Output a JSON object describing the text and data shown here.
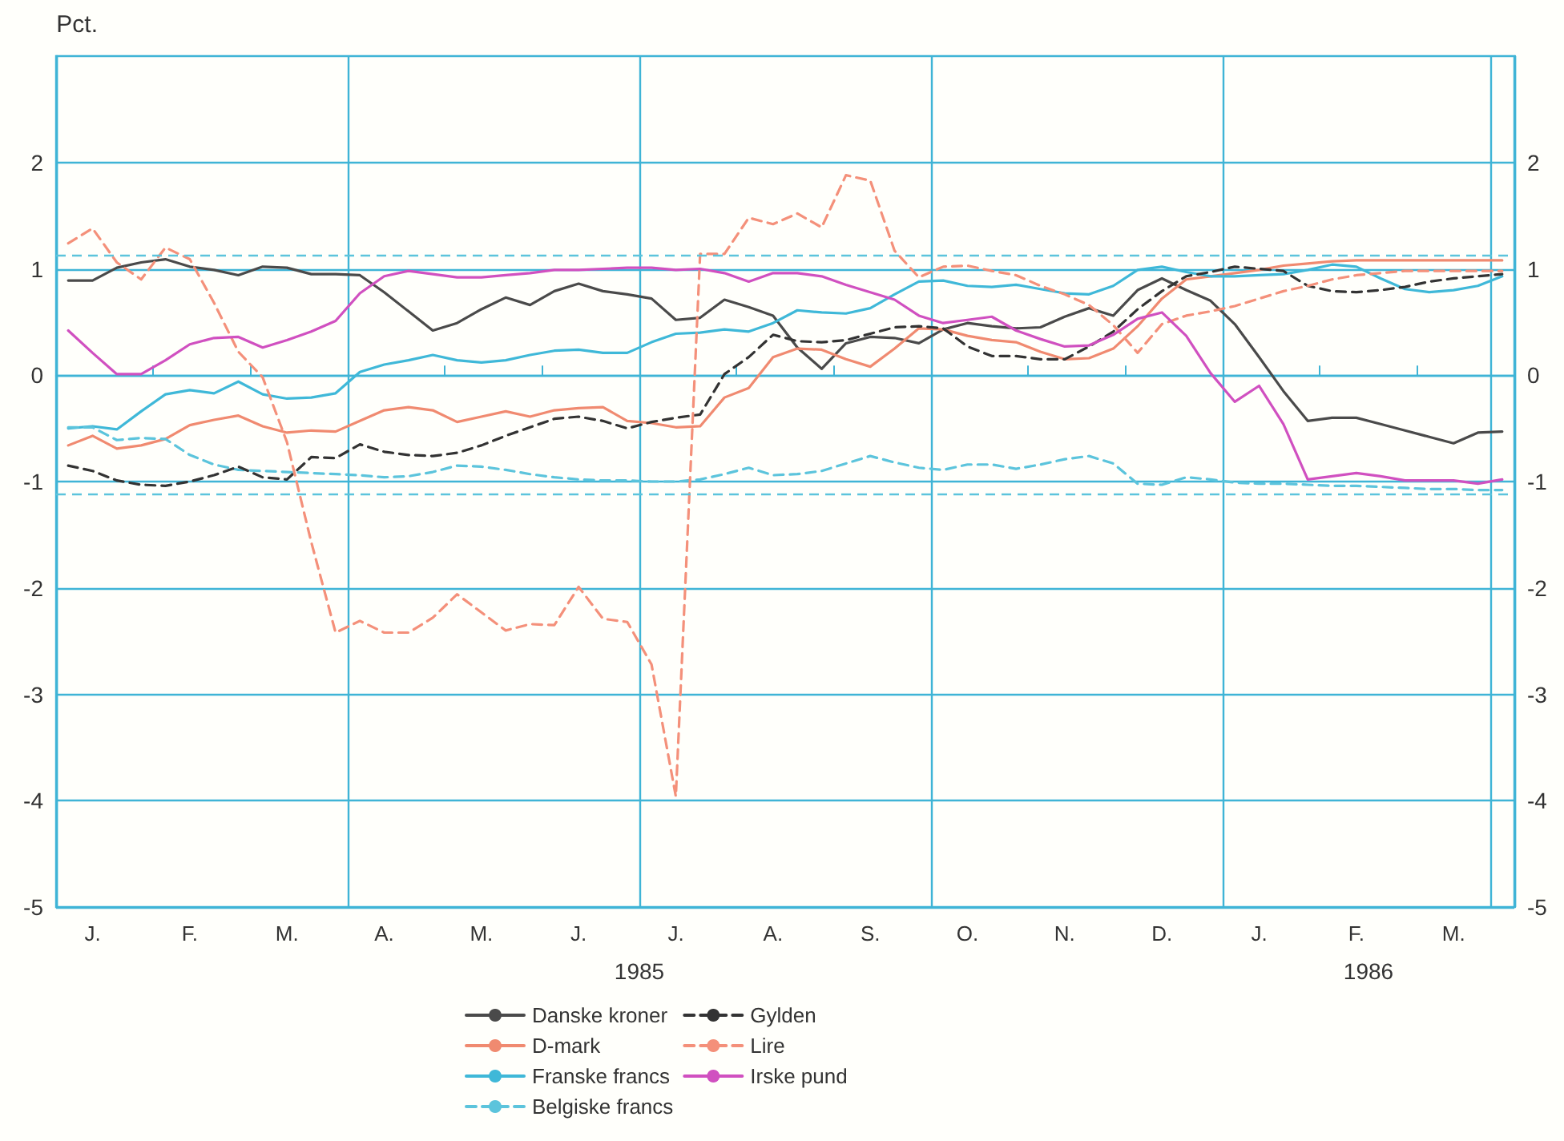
{
  "chart_data": {
    "type": "line",
    "ylabel": "Pct.",
    "categories": [
      null,
      "J.",
      null,
      null,
      null,
      "F.",
      null,
      null,
      null,
      "M.",
      null,
      null,
      null,
      "A.",
      null,
      null,
      null,
      "M.",
      null,
      null,
      null,
      "J.",
      null,
      null,
      null,
      "J.",
      null,
      null,
      null,
      "A.",
      null,
      null,
      null,
      "S.",
      null,
      null,
      null,
      "O.",
      null,
      null,
      null,
      "N.",
      null,
      null,
      null,
      "D.",
      null,
      null,
      null,
      "J.",
      null,
      null,
      null,
      "F.",
      null,
      null,
      null,
      "M.",
      null,
      null
    ],
    "ylim": [
      -5,
      3
    ],
    "yticks": [
      -5,
      -4,
      -3,
      -2,
      -1,
      0,
      1,
      2
    ],
    "y2lim": [
      -5,
      3
    ],
    "y2ticks": [
      -5,
      -4,
      -3,
      -2,
      -1,
      0,
      1,
      2
    ],
    "grid": true,
    "legend": "bottom",
    "marker": "none",
    "line_style": "solid",
    "annotations": [
      "1985",
      "1986"
    ],
    "ref_lines": [
      {
        "axis": "y",
        "value": 1.13,
        "color": "#5cc4dc",
        "line_style": "dashed"
      },
      {
        "axis": "y",
        "value": -1.12,
        "color": "#5cc4dc",
        "line_style": "dashed"
      }
    ],
    "series": [
      {
        "name": "Danske kroner",
        "color": "#4a4a4a",
        "values": [
          0.89,
          0.89,
          1.01,
          1.06,
          1.09,
          1.02,
          0.99,
          0.94,
          1.02,
          1.01,
          0.95,
          0.95,
          0.94,
          0.78,
          0.6,
          0.42,
          0.49,
          0.62,
          0.73,
          0.66,
          0.79,
          0.86,
          0.79,
          0.76,
          0.72,
          0.52,
          0.54,
          0.71,
          0.64,
          0.56,
          0.26,
          0.06,
          0.3,
          0.36,
          0.35,
          0.3,
          0.43,
          0.49,
          0.46,
          0.44,
          0.45,
          0.55,
          0.63,
          0.56,
          0.8,
          0.91,
          0.8,
          0.7,
          0.48,
          0.17,
          -0.15,
          -0.43,
          -0.4,
          -0.4,
          -0.46,
          -0.52,
          -0.58,
          -0.64,
          -0.54,
          -0.53
        ]
      },
      {
        "name": "D-mark",
        "color": "#f08a70",
        "values": [
          -0.66,
          -0.57,
          -0.69,
          -0.66,
          -0.6,
          -0.47,
          -0.42,
          -0.38,
          -0.48,
          -0.54,
          -0.52,
          -0.53,
          -0.43,
          -0.33,
          -0.3,
          -0.33,
          -0.44,
          -0.39,
          -0.34,
          -0.39,
          -0.33,
          -0.31,
          -0.3,
          -0.43,
          -0.45,
          -0.49,
          -0.48,
          -0.21,
          -0.12,
          0.17,
          0.25,
          0.24,
          0.15,
          0.08,
          0.25,
          0.44,
          0.43,
          0.37,
          0.33,
          0.31,
          0.22,
          0.15,
          0.16,
          0.25,
          0.46,
          0.72,
          0.9,
          0.93,
          0.96,
          0.99,
          1.03,
          1.05,
          1.07,
          1.08,
          1.08,
          1.08,
          1.08,
          1.08,
          1.08,
          1.08
        ]
      },
      {
        "name": "Franske francs",
        "color": "#3fb8d8",
        "values": [
          -0.5,
          -0.48,
          -0.51,
          -0.34,
          -0.18,
          -0.14,
          -0.17,
          -0.06,
          -0.18,
          -0.22,
          -0.21,
          -0.17,
          0.03,
          0.1,
          0.14,
          0.19,
          0.14,
          0.12,
          0.14,
          0.19,
          0.23,
          0.24,
          0.21,
          0.21,
          0.31,
          0.39,
          0.4,
          0.43,
          0.41,
          0.49,
          0.61,
          0.59,
          0.58,
          0.63,
          0.76,
          0.88,
          0.89,
          0.84,
          0.83,
          0.85,
          0.81,
          0.77,
          0.76,
          0.84,
          0.99,
          1.02,
          0.97,
          0.93,
          0.93,
          0.94,
          0.95,
          0.99,
          1.04,
          1.02,
          0.91,
          0.81,
          0.78,
          0.8,
          0.84,
          0.93
        ]
      },
      {
        "name": "Belgiske francs",
        "color": "#5cc4dc",
        "line_style": "dashed",
        "values": [
          -0.49,
          -0.49,
          -0.61,
          -0.59,
          -0.6,
          -0.75,
          -0.84,
          -0.89,
          -0.9,
          -0.91,
          -0.92,
          -0.93,
          -0.94,
          -0.96,
          -0.95,
          -0.91,
          -0.85,
          -0.86,
          -0.89,
          -0.93,
          -0.96,
          -0.98,
          -0.99,
          -0.99,
          -1.0,
          -1.0,
          -0.98,
          -0.93,
          -0.87,
          -0.94,
          -0.93,
          -0.9,
          -0.83,
          -0.76,
          -0.82,
          -0.87,
          -0.89,
          -0.84,
          -0.84,
          -0.88,
          -0.84,
          -0.79,
          -0.76,
          -0.83,
          -1.02,
          -1.03,
          -0.96,
          -0.98,
          -1.01,
          -1.02,
          -1.02,
          -1.03,
          -1.04,
          -1.04,
          -1.05,
          -1.06,
          -1.07,
          -1.07,
          -1.08,
          -1.08
        ]
      },
      {
        "name": "Gylden",
        "color": "#333333",
        "line_style": "dashed",
        "values": [
          -0.85,
          -0.9,
          -0.99,
          -1.03,
          -1.04,
          -1.0,
          -0.94,
          -0.86,
          -0.96,
          -0.98,
          -0.77,
          -0.78,
          -0.65,
          -0.72,
          -0.75,
          -0.76,
          -0.73,
          -0.66,
          -0.57,
          -0.49,
          -0.41,
          -0.39,
          -0.43,
          -0.5,
          -0.44,
          -0.4,
          -0.37,
          0.01,
          0.17,
          0.38,
          0.32,
          0.31,
          0.33,
          0.39,
          0.45,
          0.46,
          0.44,
          0.27,
          0.18,
          0.18,
          0.15,
          0.15,
          0.27,
          0.41,
          0.62,
          0.79,
          0.93,
          0.97,
          1.02,
          1.0,
          0.98,
          0.84,
          0.79,
          0.78,
          0.8,
          0.83,
          0.88,
          0.91,
          0.93,
          0.95
        ]
      },
      {
        "name": "Lire",
        "color": "#f4907a",
        "line_style": "dashed",
        "values": [
          1.24,
          1.38,
          1.06,
          0.9,
          1.2,
          1.09,
          0.68,
          0.22,
          -0.02,
          -0.63,
          -1.57,
          -2.42,
          -2.31,
          -2.42,
          -2.42,
          -2.28,
          -2.06,
          -2.23,
          -2.4,
          -2.34,
          -2.35,
          -1.99,
          -2.29,
          -2.32,
          -2.72,
          -3.96,
          1.14,
          1.14,
          1.48,
          1.42,
          1.52,
          1.39,
          1.88,
          1.83,
          1.17,
          0.92,
          1.02,
          1.03,
          0.98,
          0.94,
          0.84,
          0.76,
          0.66,
          0.47,
          0.21,
          0.48,
          0.56,
          0.6,
          0.65,
          0.72,
          0.79,
          0.84,
          0.9,
          0.94,
          0.96,
          0.98,
          0.98,
          0.98,
          0.98,
          0.98
        ]
      },
      {
        "name": "Irske pund",
        "color": "#d050c0",
        "values": [
          0.42,
          0.21,
          0.01,
          0.01,
          0.14,
          0.29,
          0.35,
          0.36,
          0.26,
          0.33,
          0.41,
          0.51,
          0.77,
          0.93,
          0.98,
          0.95,
          0.92,
          0.92,
          0.94,
          0.96,
          0.99,
          0.99,
          1.0,
          1.01,
          1.01,
          0.99,
          1.0,
          0.96,
          0.88,
          0.96,
          0.96,
          0.93,
          0.85,
          0.78,
          0.71,
          0.56,
          0.49,
          0.52,
          0.55,
          0.42,
          0.34,
          0.27,
          0.28,
          0.38,
          0.53,
          0.59,
          0.37,
          0.02,
          -0.25,
          -0.1,
          -0.46,
          -0.98,
          -0.95,
          -0.92,
          -0.95,
          -0.99,
          -0.99,
          -0.99,
          -1.02,
          -0.98
        ]
      }
    ]
  }
}
